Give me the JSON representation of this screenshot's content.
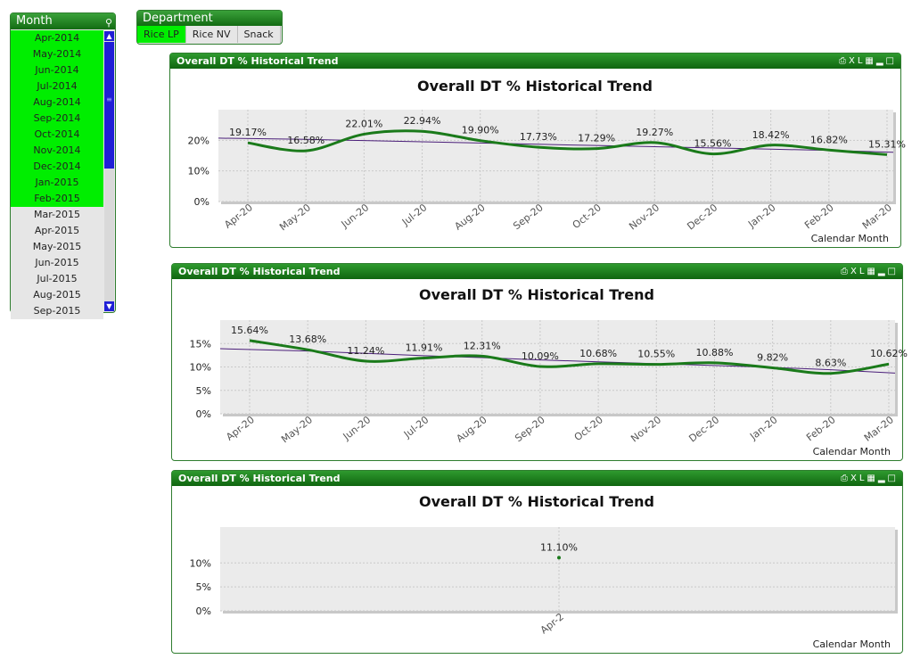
{
  "month_box": {
    "title": "Month",
    "search_icon": "search-icon",
    "items": [
      {
        "label": "Apr-2014",
        "selected": true
      },
      {
        "label": "May-2014",
        "selected": true
      },
      {
        "label": "Jun-2014",
        "selected": true
      },
      {
        "label": "Jul-2014",
        "selected": true
      },
      {
        "label": "Aug-2014",
        "selected": true
      },
      {
        "label": "Sep-2014",
        "selected": true
      },
      {
        "label": "Oct-2014",
        "selected": true
      },
      {
        "label": "Nov-2014",
        "selected": true
      },
      {
        "label": "Dec-2014",
        "selected": true
      },
      {
        "label": "Jan-2015",
        "selected": true
      },
      {
        "label": "Feb-2015",
        "selected": true
      },
      {
        "label": "Mar-2015",
        "selected": false
      },
      {
        "label": "Apr-2015",
        "selected": false
      },
      {
        "label": "May-2015",
        "selected": false
      },
      {
        "label": "Jun-2015",
        "selected": false
      },
      {
        "label": "Jul-2015",
        "selected": false
      },
      {
        "label": "Aug-2015",
        "selected": false
      },
      {
        "label": "Sep-2015",
        "selected": false
      }
    ]
  },
  "department_box": {
    "title": "Department",
    "items": [
      {
        "label": "Rice LP",
        "selected": true
      },
      {
        "label": "Rice NV",
        "selected": false
      },
      {
        "label": "Snack",
        "selected": false
      }
    ]
  },
  "colors": {
    "selected": "#00ee00",
    "caption": "#1a7a1a",
    "series": "#1a7a1a",
    "trendline": "#4b1f7a",
    "scrollbar": "#1f1fd6"
  },
  "panel_caption": "Overall DT % Historical Trend",
  "panel_tools": {
    "print": "print-icon",
    "excel": "XL",
    "chart": "chart-icon",
    "minimize": "minimize-icon",
    "maximize": "maximize-icon"
  },
  "chart_data": [
    {
      "type": "line",
      "title": "Overall DT % Historical Trend",
      "xlabel": "Calendar Month",
      "ylabel": "",
      "ylim": [
        0,
        30
      ],
      "yticks": [
        0,
        10,
        20
      ],
      "ytick_labels": [
        "0%",
        "10%",
        "20%"
      ],
      "categories": [
        "Apr-20",
        "May-20",
        "Jun-20",
        "Jul-20",
        "Aug-20",
        "Sep-20",
        "Oct-20",
        "Nov-20",
        "Dec-20",
        "Jan-20",
        "Feb-20",
        "Mar-20"
      ],
      "values": [
        19.17,
        16.58,
        22.01,
        22.94,
        19.9,
        17.73,
        17.29,
        19.27,
        15.56,
        18.42,
        16.82,
        15.31
      ],
      "value_labels": [
        "19.17%",
        "16.58%",
        "22.01%",
        "22.94%",
        "19.90%",
        "17.73%",
        "17.29%",
        "19.27%",
        "15.56%",
        "18.42%",
        "16.82%",
        "15.31%"
      ],
      "trendline": [
        20.7,
        20.3,
        19.9,
        19.5,
        19.1,
        18.7,
        18.3,
        17.9,
        17.5,
        17.1,
        16.7,
        16.1
      ]
    },
    {
      "type": "line",
      "title": "Overall DT % Historical Trend",
      "xlabel": "Calendar Month",
      "ylabel": "",
      "ylim": [
        0,
        20
      ],
      "yticks": [
        0,
        5,
        10,
        15
      ],
      "ytick_labels": [
        "0%",
        "5%",
        "10%",
        "15%"
      ],
      "categories": [
        "Apr-20",
        "May-20",
        "Jun-20",
        "Jul-20",
        "Aug-20",
        "Sep-20",
        "Oct-20",
        "Nov-20",
        "Dec-20",
        "Jan-20",
        "Feb-20",
        "Mar-20"
      ],
      "values": [
        15.64,
        13.68,
        11.24,
        11.91,
        12.31,
        10.09,
        10.68,
        10.55,
        10.88,
        9.82,
        8.63,
        10.62
      ],
      "value_labels": [
        "15.64%",
        "13.68%",
        "11.24%",
        "11.91%",
        "12.31%",
        "10.09%",
        "10.68%",
        "10.55%",
        "10.88%",
        "9.82%",
        "8.63%",
        "10.62%"
      ],
      "trendline": [
        13.9,
        13.4,
        12.9,
        12.4,
        12.0,
        11.5,
        11.1,
        10.7,
        10.3,
        9.9,
        9.4,
        8.7
      ]
    },
    {
      "type": "scatter",
      "title": "Overall DT % Historical Trend",
      "xlabel": "Calendar Month",
      "ylabel": "",
      "ylim": [
        0,
        17.5
      ],
      "yticks": [
        0,
        5,
        10
      ],
      "ytick_labels": [
        "0%",
        "5%",
        "10%"
      ],
      "categories": [
        "Apr-2"
      ],
      "values": [
        11.1
      ],
      "value_labels": [
        "11.10%"
      ]
    }
  ]
}
